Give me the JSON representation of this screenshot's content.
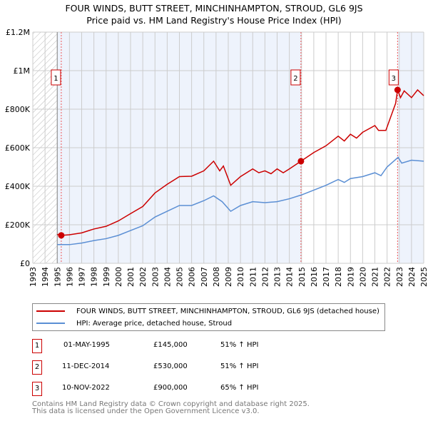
{
  "chart_data": {
    "type": "line",
    "title": "FOUR WINDS, BUTT STREET, MINCHINHAMPTON, STROUD, GL6 9JS",
    "subtitle": "Price paid vs. HM Land Registry's House Price Index (HPI)",
    "xlim": [
      1993,
      2025
    ],
    "ylim": [
      0,
      1200000
    ],
    "x_ticks": [
      "1993",
      "1994",
      "1995",
      "1996",
      "1997",
      "1998",
      "1999",
      "2000",
      "2001",
      "2002",
      "2003",
      "2004",
      "2005",
      "2006",
      "2007",
      "2008",
      "2009",
      "2010",
      "2011",
      "2012",
      "2013",
      "2014",
      "2015",
      "2016",
      "2017",
      "2018",
      "2019",
      "2020",
      "2021",
      "2022",
      "2023",
      "2024",
      "2025"
    ],
    "y_ticks": [
      {
        "v": 0,
        "label": "£0"
      },
      {
        "v": 200000,
        "label": "£200K"
      },
      {
        "v": 400000,
        "label": "£400K"
      },
      {
        "v": 600000,
        "label": "£600K"
      },
      {
        "v": 800000,
        "label": "£800K"
      },
      {
        "v": 1000000,
        "label": "£1M"
      },
      {
        "v": 1200000,
        "label": "£1.2M"
      }
    ],
    "grid": true,
    "series": [
      {
        "name": "FOUR WINDS, BUTT STREET, MINCHINHAMPTON, STROUD, GL6 9JS (detached house)",
        "color": "#cc0000",
        "x": [
          1995,
          1995.33,
          1996,
          1997,
          1998,
          1999,
          2000,
          2001,
          2002,
          2003,
          2004,
          2005,
          2006,
          2007,
          2007.8,
          2008.3,
          2008.6,
          2009.2,
          2010,
          2011,
          2011.5,
          2012,
          2012.5,
          2013,
          2013.5,
          2014,
          2014.95,
          2016,
          2017,
          2018,
          2018.5,
          2019,
          2019.5,
          2020,
          2021,
          2021.3,
          2021.9,
          2022.3,
          2022.7,
          2022.86,
          2023.1,
          2023.4,
          2024,
          2024.5,
          2025
        ],
        "y": [
          150000,
          145000,
          148000,
          158000,
          178000,
          192000,
          220000,
          258000,
          295000,
          365000,
          410000,
          450000,
          452000,
          480000,
          530000,
          480000,
          505000,
          405000,
          450000,
          490000,
          470000,
          480000,
          465000,
          490000,
          470000,
          490000,
          530000,
          575000,
          610000,
          660000,
          635000,
          670000,
          650000,
          680000,
          715000,
          690000,
          690000,
          760000,
          830000,
          900000,
          860000,
          895000,
          860000,
          900000,
          870000
        ]
      },
      {
        "name": "HPI: Average price, detached house, Stroud",
        "color": "#5b8fd4",
        "x": [
          1995,
          1996,
          1997,
          1998,
          1999,
          2000,
          2001,
          2002,
          2003,
          2004,
          2005,
          2006,
          2007,
          2007.8,
          2008.5,
          2009.2,
          2010,
          2011,
          2012,
          2013,
          2014,
          2015,
          2016,
          2017,
          2018,
          2018.5,
          2019,
          2020,
          2021,
          2021.5,
          2022,
          2022.9,
          2023.2,
          2024,
          2025
        ],
        "y": [
          97000,
          97000,
          105000,
          118000,
          128000,
          145000,
          170000,
          195000,
          240000,
          270000,
          300000,
          300000,
          325000,
          350000,
          320000,
          270000,
          300000,
          320000,
          315000,
          320000,
          335000,
          355000,
          380000,
          405000,
          435000,
          420000,
          440000,
          450000,
          470000,
          455000,
          500000,
          550000,
          520000,
          535000,
          530000
        ]
      }
    ],
    "sales": [
      {
        "n": "1",
        "x": 1995.33,
        "y": 145000,
        "date": "01-MAY-1995",
        "price": "£145,000",
        "hpi": "51% ↑ HPI"
      },
      {
        "n": "2",
        "x": 2014.95,
        "y": 530000,
        "date": "11-DEC-2014",
        "price": "£530,000",
        "hpi": "51% ↑ HPI"
      },
      {
        "n": "3",
        "x": 2022.86,
        "y": 900000,
        "date": "10-NOV-2022",
        "price": "£900,000",
        "hpi": "65% ↑ HPI"
      }
    ]
  },
  "legend": {
    "red": "FOUR WINDS, BUTT STREET, MINCHINHAMPTON, STROUD, GL6 9JS (detached house)",
    "blue": "HPI: Average price, detached house, Stroud"
  },
  "footer": {
    "line1": "Contains HM Land Registry data © Crown copyright and database right 2025.",
    "line2": "This data is licensed under the Open Government Licence v3.0."
  }
}
